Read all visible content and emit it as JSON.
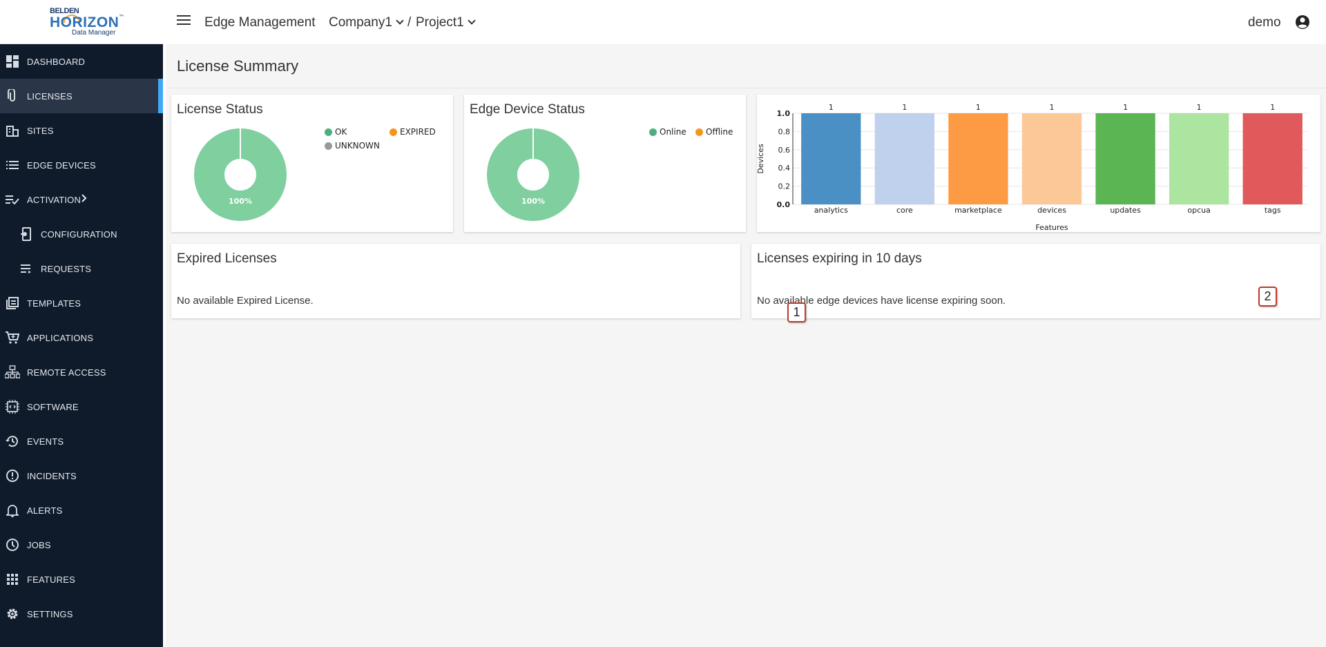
{
  "brand": {
    "line1": "BELDEN",
    "line2": "HORIZON",
    "trademark": "™",
    "line3": "Data Manager"
  },
  "header": {
    "app_title": "Edge Management",
    "company": "Company1",
    "separator": "/",
    "project": "Project1",
    "user": "demo",
    "menu_icon": "hamburger-icon",
    "user_icon": "account-circle-icon"
  },
  "sidebar": {
    "items": [
      {
        "label": "DASHBOARD",
        "icon": "dashboard-icon"
      },
      {
        "label": "LICENSES",
        "icon": "paperclip-icon",
        "active": true
      },
      {
        "label": "SITES",
        "icon": "buildings-icon"
      },
      {
        "label": "EDGE DEVICES",
        "icon": "list-icon"
      },
      {
        "label": "ACTIVATION",
        "icon": "checklist-icon",
        "expandable": true
      },
      {
        "label": "CONFIGURATION",
        "icon": "config-icon",
        "sub": true
      },
      {
        "label": "REQUESTS",
        "icon": "requests-icon",
        "sub": true
      },
      {
        "label": "TEMPLATES",
        "icon": "templates-icon"
      },
      {
        "label": "APPLICATIONS",
        "icon": "cart-icon"
      },
      {
        "label": "REMOTE ACCESS",
        "icon": "network-icon"
      },
      {
        "label": "SOFTWARE",
        "icon": "chip-icon"
      },
      {
        "label": "EVENTS",
        "icon": "history-icon"
      },
      {
        "label": "INCIDENTS",
        "icon": "alert-circle-icon"
      },
      {
        "label": "ALERTS",
        "icon": "bell-icon"
      },
      {
        "label": "JOBS",
        "icon": "clock-icon"
      },
      {
        "label": "FEATURES",
        "icon": "grid-icon"
      },
      {
        "label": "SETTINGS",
        "icon": "gear-icon"
      }
    ]
  },
  "page": {
    "title": "License Summary"
  },
  "license_status": {
    "title": "License Status",
    "percent_label": "100%",
    "legend": [
      {
        "label": "OK",
        "color": "#4caf7d"
      },
      {
        "label": "EXPIRED",
        "color": "#f7941d"
      },
      {
        "label": "UNKNOWN",
        "color": "#999999"
      }
    ]
  },
  "edge_device_status": {
    "title": "Edge Device Status",
    "percent_label": "100%",
    "legend": [
      {
        "label": "Online",
        "color": "#4caf7d"
      },
      {
        "label": "Offline",
        "color": "#f7941d"
      }
    ]
  },
  "expired_licenses": {
    "title": "Expired Licenses",
    "message": "No available Expired License."
  },
  "expiring_licenses": {
    "title": "Licenses expiring in 10 days",
    "message": "No available edge devices have license expiring soon."
  },
  "badges": [
    "1",
    "2"
  ],
  "chart_data": [
    {
      "type": "pie",
      "title": "License Status",
      "slices": [
        {
          "label": "OK",
          "value": 100,
          "color": "#7fcf9f"
        }
      ],
      "center_label": "100%"
    },
    {
      "type": "pie",
      "title": "Edge Device Status",
      "slices": [
        {
          "label": "Online",
          "value": 100,
          "color": "#7fcf9f"
        }
      ],
      "center_label": "100%"
    },
    {
      "type": "bar",
      "categories": [
        "analytics",
        "core",
        "marketplace",
        "devices",
        "updates",
        "opcua",
        "tags"
      ],
      "values": [
        1,
        1,
        1,
        1,
        1,
        1,
        1
      ],
      "colors": [
        "#4a90c4",
        "#bfd1ec",
        "#fd9b45",
        "#fdc898",
        "#5ab552",
        "#abe59f",
        "#e05a5b"
      ],
      "xlabel": "Features",
      "ylabel": "Devices",
      "ylim": [
        0,
        1.0
      ],
      "yticks": [
        "0.0",
        "0.2",
        "0.4",
        "0.6",
        "0.8",
        "1.0"
      ]
    }
  ]
}
